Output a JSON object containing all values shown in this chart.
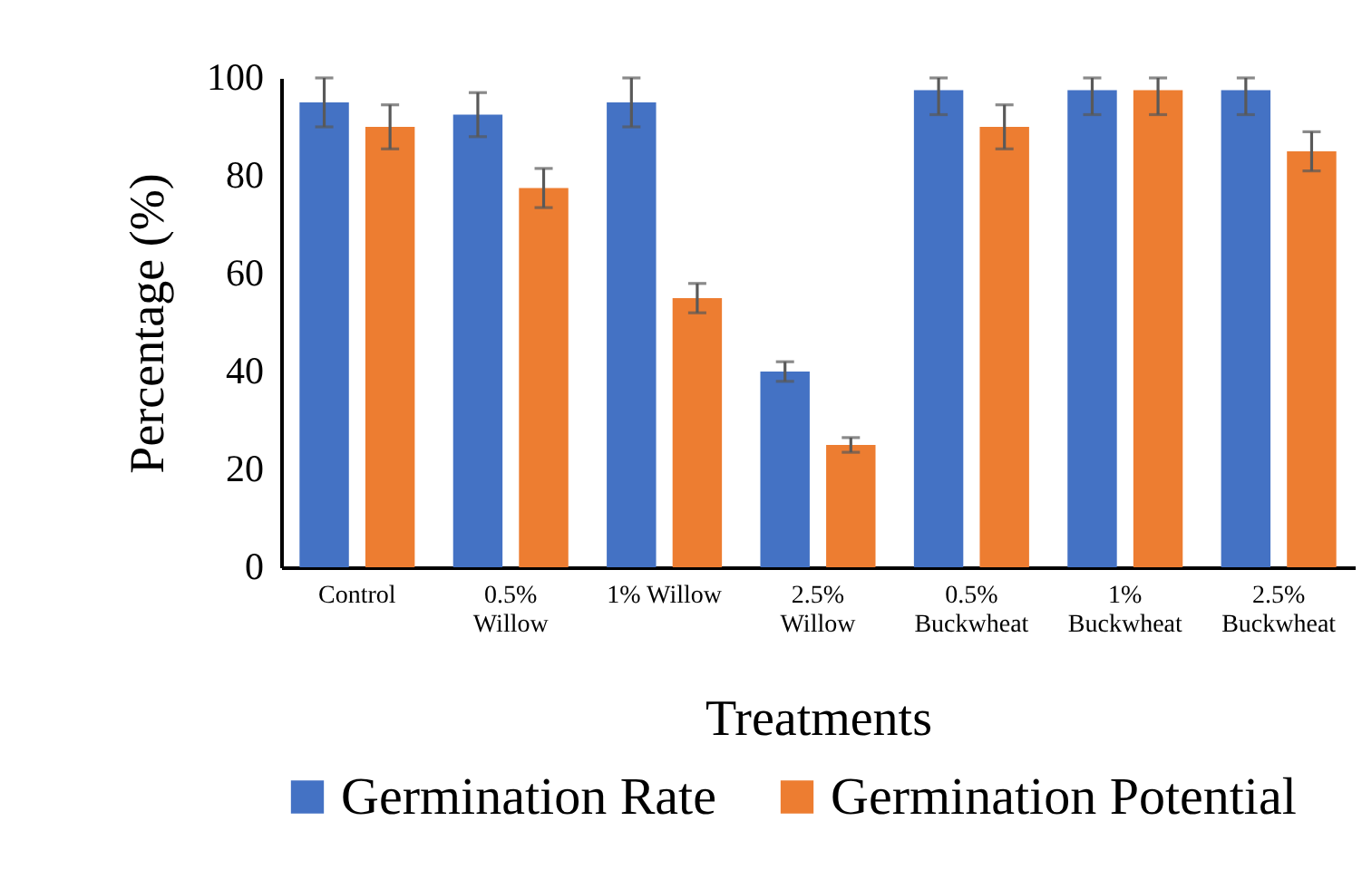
{
  "chart_data": {
    "type": "bar",
    "xlabel": "Treatments",
    "ylabel": "Percentage (%)",
    "categories": [
      "Control",
      "0.5% Willow",
      "1% Willow",
      "2.5% Willow",
      "0.5% Buckwheat",
      "1% Buckwheat",
      "2.5% Buckwheat"
    ],
    "series": [
      {
        "name": "Germination Rate",
        "color": "#4472c4",
        "values": [
          95,
          92.5,
          95,
          40,
          97.5,
          97.5,
          97.5
        ],
        "errors": [
          5,
          4.5,
          5,
          2,
          [
            92.5,
            100
          ],
          [
            92.5,
            100
          ],
          [
            92.5,
            100
          ]
        ]
      },
      {
        "name": "Germination Potential",
        "color": "#ed7d31",
        "values": [
          90,
          77.5,
          55,
          25,
          90,
          97.5,
          85
        ],
        "errors": [
          4.5,
          4,
          3,
          1.5,
          4.5,
          [
            92.5,
            100
          ],
          4
        ]
      }
    ],
    "ylim": [
      0,
      100
    ],
    "yticks": [
      0,
      20,
      40,
      60,
      80,
      100
    ],
    "grid": false,
    "legend": "bottom"
  }
}
